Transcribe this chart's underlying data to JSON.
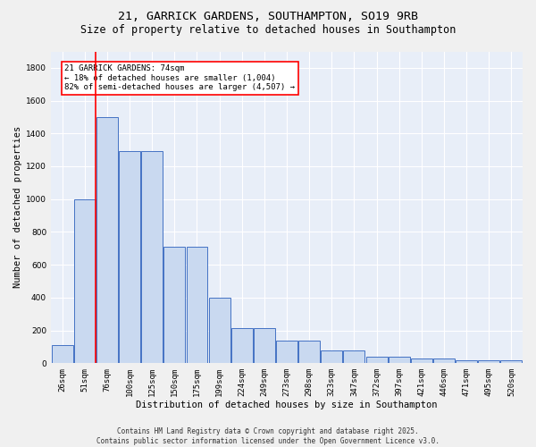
{
  "title1": "21, GARRICK GARDENS, SOUTHAMPTON, SO19 9RB",
  "title2": "Size of property relative to detached houses in Southampton",
  "xlabel": "Distribution of detached houses by size in Southampton",
  "ylabel": "Number of detached properties",
  "bar_labels": [
    "26sqm",
    "51sqm",
    "76sqm",
    "100sqm",
    "125sqm",
    "150sqm",
    "175sqm",
    "199sqm",
    "224sqm",
    "249sqm",
    "273sqm",
    "298sqm",
    "323sqm",
    "347sqm",
    "372sqm",
    "397sqm",
    "421sqm",
    "446sqm",
    "471sqm",
    "495sqm",
    "520sqm"
  ],
  "bar_heights": [
    110,
    1000,
    1500,
    1290,
    1290,
    710,
    710,
    400,
    215,
    215,
    135,
    135,
    80,
    80,
    40,
    40,
    30,
    30,
    15,
    15,
    20
  ],
  "bar_color": "#c9d9f0",
  "bar_edge_color": "#4472c4",
  "bg_color": "#e8eef8",
  "grid_color": "#ffffff",
  "vline_color": "#ff0000",
  "annotation_text": "21 GARRICK GARDENS: 74sqm\n← 18% of detached houses are smaller (1,004)\n82% of semi-detached houses are larger (4,507) →",
  "annotation_box_color": "#ff0000",
  "ylim": [
    0,
    1900
  ],
  "yticks": [
    0,
    200,
    400,
    600,
    800,
    1000,
    1200,
    1400,
    1600,
    1800
  ],
  "footer": "Contains HM Land Registry data © Crown copyright and database right 2025.\nContains public sector information licensed under the Open Government Licence v3.0.",
  "title_fontsize": 9.5,
  "subtitle_fontsize": 8.5,
  "annotation_fontsize": 6.5,
  "footer_fontsize": 5.5,
  "ylabel_fontsize": 7.5,
  "xlabel_fontsize": 7.5,
  "tick_fontsize": 6.5
}
